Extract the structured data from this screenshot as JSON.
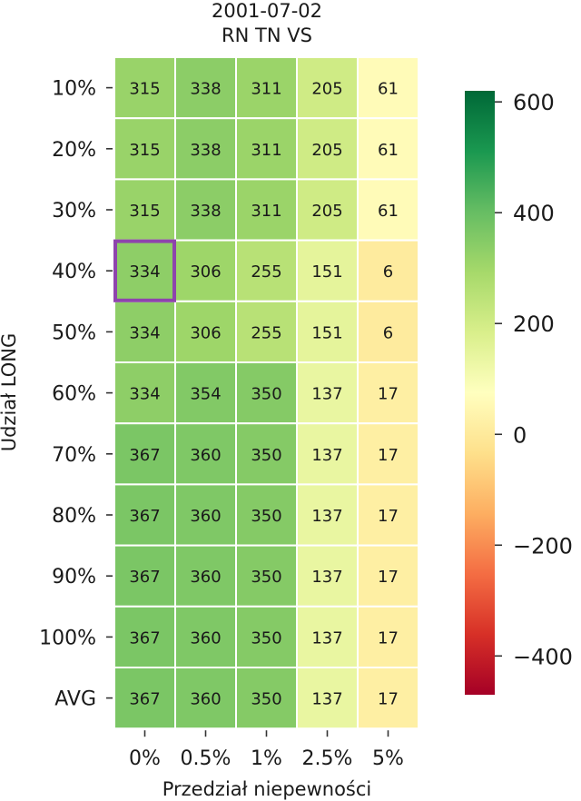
{
  "chart_data": {
    "type": "heatmap",
    "title": [
      "2001-07-02",
      "RN TN VS"
    ],
    "xlabel": "Przedział niepewności",
    "ylabel": "Udział LONG",
    "x_categories": [
      "0%",
      "0.5%",
      "1%",
      "2.5%",
      "5%"
    ],
    "y_categories": [
      "10%",
      "20%",
      "30%",
      "40%",
      "50%",
      "60%",
      "70%",
      "80%",
      "90%",
      "100%",
      "AVG"
    ],
    "values": [
      [
        315,
        338,
        311,
        205,
        61
      ],
      [
        315,
        338,
        311,
        205,
        61
      ],
      [
        315,
        338,
        311,
        205,
        61
      ],
      [
        334,
        306,
        255,
        151,
        6
      ],
      [
        334,
        306,
        255,
        151,
        6
      ],
      [
        334,
        354,
        350,
        137,
        17
      ],
      [
        367,
        360,
        350,
        137,
        17
      ],
      [
        367,
        360,
        350,
        137,
        17
      ],
      [
        367,
        360,
        350,
        137,
        17
      ],
      [
        367,
        360,
        350,
        137,
        17
      ],
      [
        367,
        360,
        350,
        137,
        17
      ]
    ],
    "highlight_cell": {
      "row": "40%",
      "col": "0%"
    },
    "highlight_color": "#8e44ad",
    "colormap": "RdYlGn",
    "vmin": -470,
    "vmax": 620,
    "colorbar_ticks": [
      600,
      400,
      200,
      0,
      -200,
      -400
    ],
    "colorbar_tick_labels": [
      "600",
      "400",
      "200",
      "0",
      "−200",
      "−400"
    ]
  }
}
